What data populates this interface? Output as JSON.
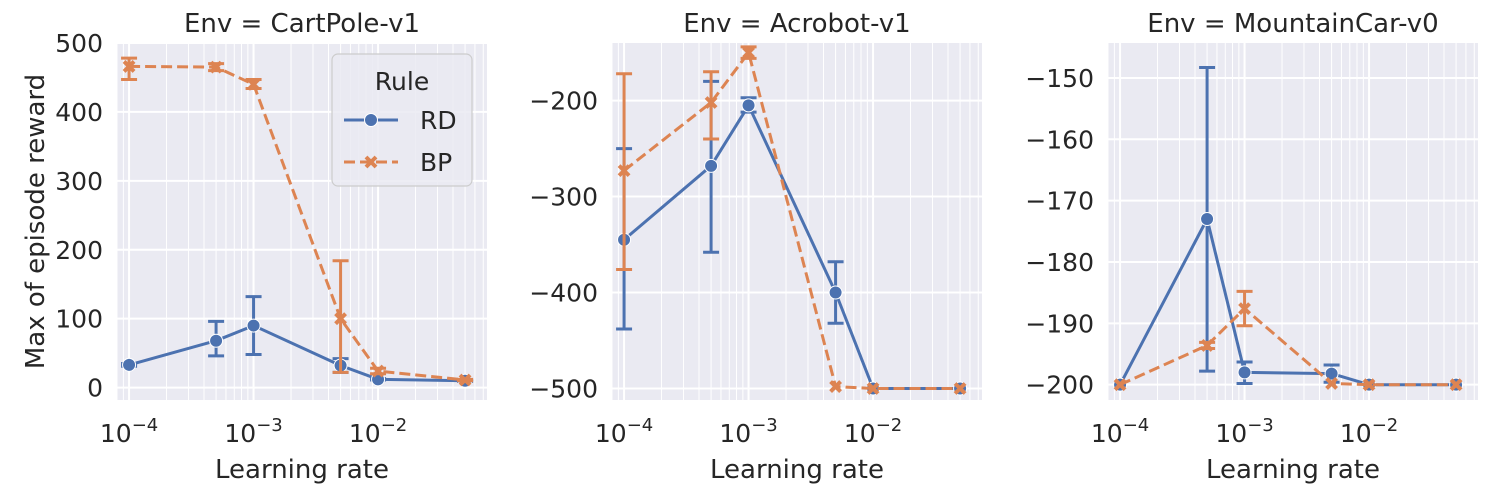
{
  "figure": {
    "ylabel": "Max of episode reward",
    "xlabel": "Learning rate",
    "legend": {
      "title": "Rule",
      "placement": "top-right of first panel",
      "entries": [
        {
          "name": "RD",
          "color": "#4c72b0",
          "marker": "circle",
          "linestyle": "solid"
        },
        {
          "name": "BP",
          "color": "#dd8452",
          "marker": "x",
          "linestyle": "dashed"
        }
      ]
    }
  },
  "chart_data": [
    {
      "type": "line",
      "title": "Env = CartPole-v1",
      "xlabel": "Learning rate",
      "ylabel": "Max of episode reward",
      "xscale": "log",
      "xlim": [
        8e-05,
        0.075
      ],
      "ylim": [
        -18,
        500
      ],
      "xticks": [
        {
          "v": 0.0001,
          "base": "10",
          "exp": "−4"
        },
        {
          "v": 0.001,
          "base": "10",
          "exp": "−3"
        },
        {
          "v": 0.01,
          "base": "10",
          "exp": "−2"
        }
      ],
      "yticks": [
        {
          "v": 0,
          "label": "0"
        },
        {
          "v": 100,
          "label": "100"
        },
        {
          "v": 200,
          "label": "200"
        },
        {
          "v": 300,
          "label": "300"
        },
        {
          "v": 400,
          "label": "400"
        },
        {
          "v": 500,
          "label": "500"
        }
      ],
      "grid": true,
      "series": [
        {
          "name": "RD",
          "x": [
            0.0001,
            0.0005,
            0.001,
            0.005,
            0.01,
            0.05
          ],
          "y": [
            33,
            68,
            90,
            32,
            12,
            10
          ],
          "err_low": [
            31,
            46,
            48,
            22,
            11,
            9
          ],
          "err_high": [
            35,
            96,
            132,
            42,
            13,
            11
          ]
        },
        {
          "name": "BP",
          "x": [
            0.0001,
            0.0005,
            0.001,
            0.005,
            0.01,
            0.05
          ],
          "y": [
            466,
            465,
            440,
            100,
            24,
            11
          ],
          "err_low": [
            447,
            460,
            434,
            22,
            20,
            10
          ],
          "err_high": [
            478,
            470,
            447,
            184,
            28,
            12
          ]
        }
      ]
    },
    {
      "type": "line",
      "title": "Env = Acrobot-v1",
      "xlabel": "Learning rate",
      "ylabel": "",
      "xscale": "log",
      "xlim": [
        8e-05,
        0.075
      ],
      "ylim": [
        -512,
        -140
      ],
      "xticks": [
        {
          "v": 0.0001,
          "base": "10",
          "exp": "−4"
        },
        {
          "v": 0.001,
          "base": "10",
          "exp": "−3"
        },
        {
          "v": 0.01,
          "base": "10",
          "exp": "−2"
        }
      ],
      "yticks": [
        {
          "v": -500,
          "label": "−500"
        },
        {
          "v": -400,
          "label": "−400"
        },
        {
          "v": -300,
          "label": "−300"
        },
        {
          "v": -200,
          "label": "−200"
        }
      ],
      "grid": true,
      "series": [
        {
          "name": "RD",
          "x": [
            0.0001,
            0.0005,
            0.001,
            0.005,
            0.01,
            0.05
          ],
          "y": [
            -345,
            -268,
            -205,
            -400,
            -500,
            -500
          ],
          "err_low": [
            -438,
            -358,
            -212,
            -432,
            -500,
            -500
          ],
          "err_high": [
            -250,
            -180,
            -197,
            -368,
            -500,
            -500
          ]
        },
        {
          "name": "BP",
          "x": [
            0.0001,
            0.0005,
            0.001,
            0.005,
            0.01,
            0.05
          ],
          "y": [
            -273,
            -202,
            -150,
            -498,
            -500,
            -500
          ],
          "err_low": [
            -376,
            -240,
            -156,
            -498,
            -500,
            -500
          ],
          "err_high": [
            -172,
            -170,
            -144,
            -498,
            -500,
            -500
          ]
        }
      ]
    },
    {
      "type": "line",
      "title": "Env = MountainCar-v0",
      "xlabel": "Learning rate",
      "ylabel": "",
      "xscale": "log",
      "xlim": [
        8e-05,
        0.075
      ],
      "ylim": [
        -202.5,
        -144.3
      ],
      "xticks": [
        {
          "v": 0.0001,
          "base": "10",
          "exp": "−4"
        },
        {
          "v": 0.001,
          "base": "10",
          "exp": "−3"
        },
        {
          "v": 0.01,
          "base": "10",
          "exp": "−2"
        }
      ],
      "yticks": [
        {
          "v": -200,
          "label": "−200"
        },
        {
          "v": -190,
          "label": "−190"
        },
        {
          "v": -180,
          "label": "−180"
        },
        {
          "v": -170,
          "label": "−170"
        },
        {
          "v": -160,
          "label": "−160"
        },
        {
          "v": -150,
          "label": "−150"
        }
      ],
      "grid": true,
      "series": [
        {
          "name": "RD",
          "x": [
            0.0001,
            0.0005,
            0.001,
            0.005,
            0.01,
            0.05
          ],
          "y": [
            -200,
            -173,
            -198,
            -198.2,
            -200,
            -200
          ],
          "err_low": [
            -200,
            -197.8,
            -199.8,
            -199.6,
            -200,
            -200
          ],
          "err_high": [
            -200,
            -148.3,
            -196.3,
            -196.8,
            -200,
            -200
          ]
        },
        {
          "name": "BP",
          "x": [
            0.0001,
            0.0005,
            0.001,
            0.005,
            0.01,
            0.05
          ],
          "y": [
            -200,
            -193.6,
            -187.6,
            -199.8,
            -200,
            -200
          ],
          "err_low": [
            -200,
            -194.1,
            -190.4,
            -199.8,
            -200,
            -200
          ],
          "err_high": [
            -200,
            -193.1,
            -184.8,
            -199.8,
            -200,
            -200
          ]
        }
      ]
    }
  ]
}
